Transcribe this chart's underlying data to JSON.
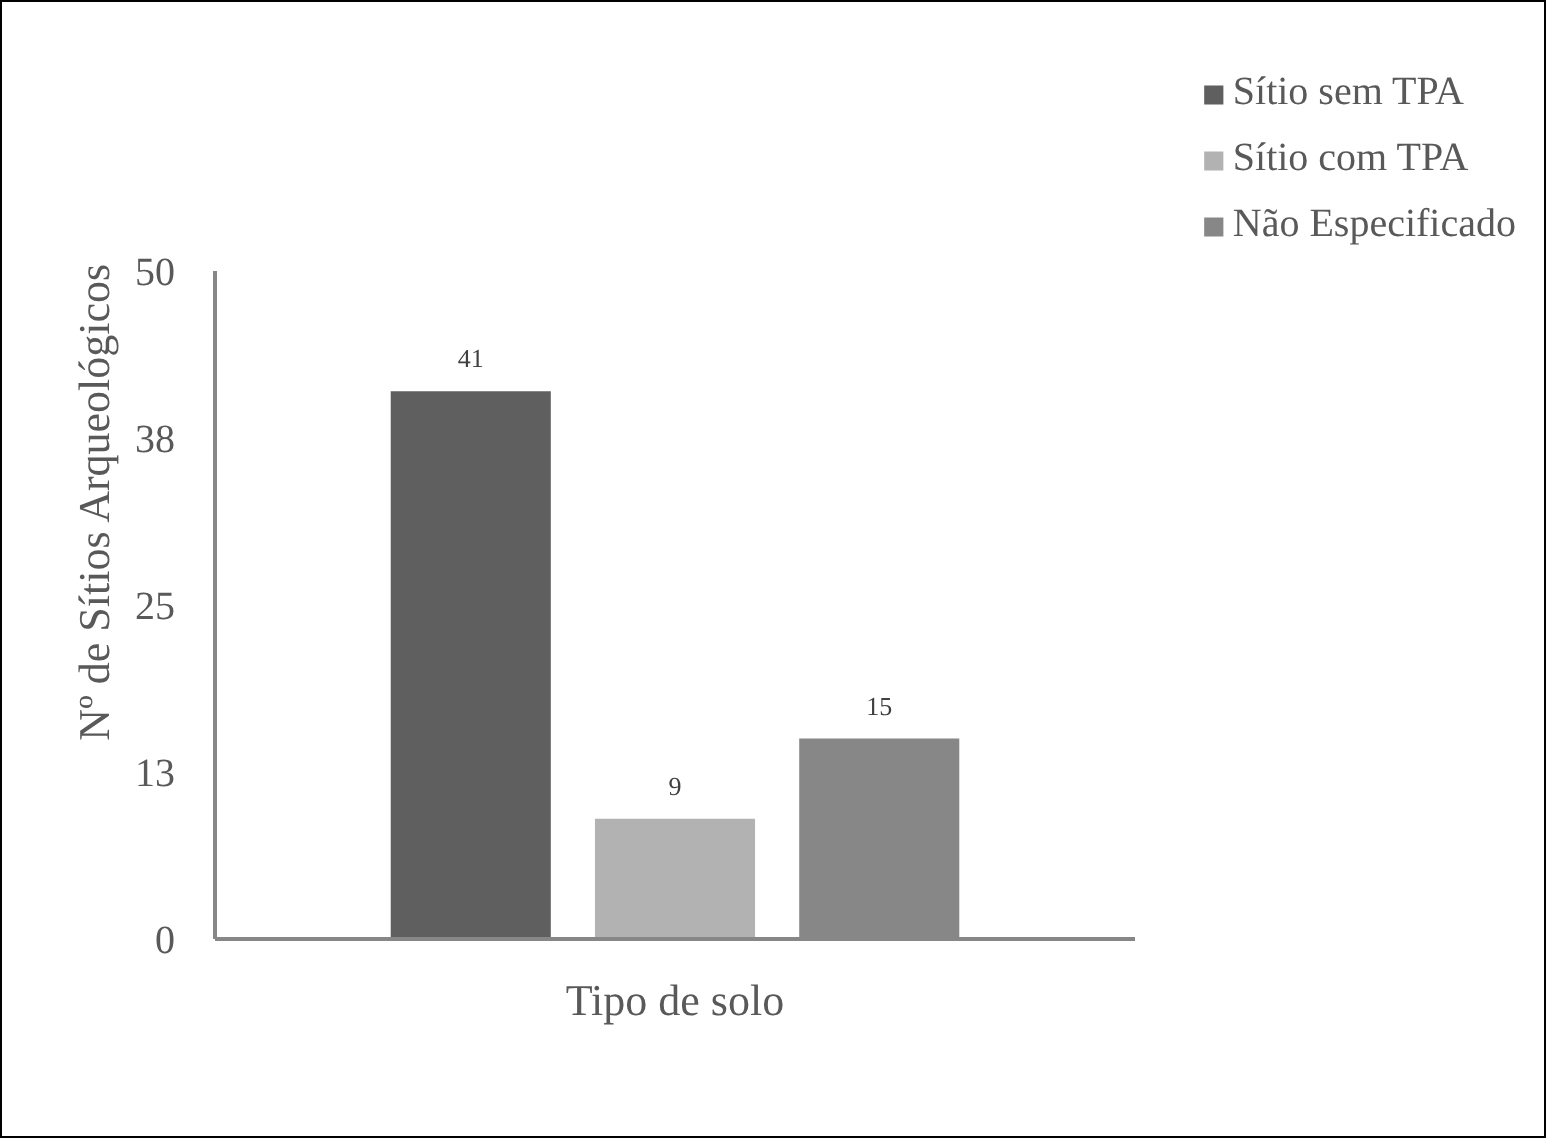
{
  "chart_data": {
    "type": "bar",
    "ylabel": "Nº de Sítios Arqueológicos",
    "categories": [
      "Tipo de solo"
    ],
    "series": [
      {
        "name": "Sítio sem TPA",
        "color": "#5f5f5f",
        "values": [
          41
        ]
      },
      {
        "name": "Sítio com TPA",
        "color": "#b2b2b2",
        "values": [
          9
        ]
      },
      {
        "name": "Não Especificado",
        "color": "#878787",
        "values": [
          15
        ]
      }
    ],
    "ylim": [
      0,
      50
    ],
    "yticks": [
      0,
      {
        "value": 12.5,
        "label": "13"
      },
      25,
      {
        "value": 37.5,
        "label": "38"
      },
      50
    ],
    "data_labels": true,
    "grid": false,
    "legend": "top right"
  }
}
